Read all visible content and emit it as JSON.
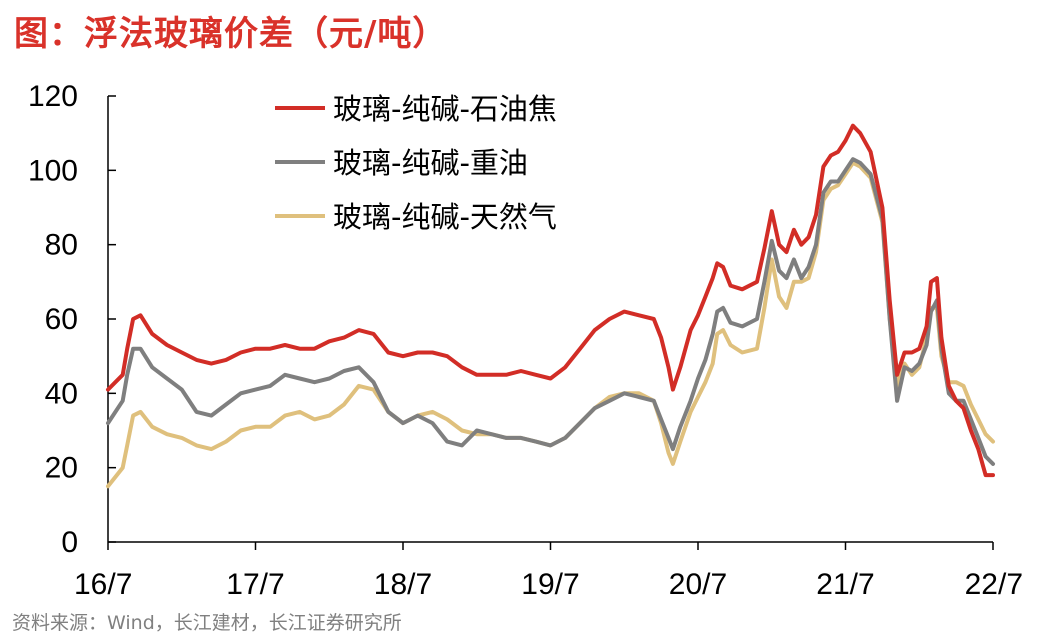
{
  "title": "图：浮法玻璃价差（元/吨）",
  "source": "资料来源：Wind，长江建材，长江证券研究所",
  "chart_data": {
    "type": "line",
    "x_ticks": [
      "16/7",
      "17/7",
      "18/7",
      "19/7",
      "20/7",
      "21/7",
      "22/7"
    ],
    "x_range": [
      2016.5,
      2022.5
    ],
    "ylim": [
      0,
      120
    ],
    "y_ticks": [
      0,
      20,
      40,
      60,
      80,
      100,
      120
    ],
    "legend_position": "top-left",
    "grid": false,
    "series": [
      {
        "name": "玻璃-纯碱-石油焦",
        "color": "#d22d26",
        "points": [
          [
            2016.5,
            41
          ],
          [
            2016.6,
            45
          ],
          [
            2016.63,
            52
          ],
          [
            2016.67,
            60
          ],
          [
            2016.72,
            61
          ],
          [
            2016.8,
            56
          ],
          [
            2016.9,
            53
          ],
          [
            2017.0,
            51
          ],
          [
            2017.1,
            49
          ],
          [
            2017.2,
            48
          ],
          [
            2017.3,
            49
          ],
          [
            2017.4,
            51
          ],
          [
            2017.5,
            52
          ],
          [
            2017.6,
            52
          ],
          [
            2017.7,
            53
          ],
          [
            2017.8,
            52
          ],
          [
            2017.9,
            52
          ],
          [
            2018.0,
            54
          ],
          [
            2018.1,
            55
          ],
          [
            2018.2,
            57
          ],
          [
            2018.3,
            56
          ],
          [
            2018.4,
            51
          ],
          [
            2018.5,
            50
          ],
          [
            2018.6,
            51
          ],
          [
            2018.7,
            51
          ],
          [
            2018.8,
            50
          ],
          [
            2018.9,
            47
          ],
          [
            2019.0,
            45
          ],
          [
            2019.1,
            45
          ],
          [
            2019.2,
            45
          ],
          [
            2019.3,
            46
          ],
          [
            2019.4,
            45
          ],
          [
            2019.5,
            44
          ],
          [
            2019.6,
            47
          ],
          [
            2019.7,
            52
          ],
          [
            2019.8,
            57
          ],
          [
            2019.9,
            60
          ],
          [
            2020.0,
            62
          ],
          [
            2020.1,
            61
          ],
          [
            2020.2,
            60
          ],
          [
            2020.25,
            55
          ],
          [
            2020.3,
            47
          ],
          [
            2020.33,
            41
          ],
          [
            2020.38,
            47
          ],
          [
            2020.45,
            57
          ],
          [
            2020.5,
            61
          ],
          [
            2020.55,
            66
          ],
          [
            2020.6,
            71
          ],
          [
            2020.63,
            75
          ],
          [
            2020.67,
            74
          ],
          [
            2020.72,
            69
          ],
          [
            2020.8,
            68
          ],
          [
            2020.9,
            70
          ],
          [
            2020.95,
            79
          ],
          [
            2021.0,
            89
          ],
          [
            2021.05,
            80
          ],
          [
            2021.1,
            78
          ],
          [
            2021.15,
            84
          ],
          [
            2021.2,
            80
          ],
          [
            2021.25,
            82
          ],
          [
            2021.3,
            88
          ],
          [
            2021.35,
            101
          ],
          [
            2021.4,
            104
          ],
          [
            2021.45,
            105
          ],
          [
            2021.5,
            108
          ],
          [
            2021.55,
            112
          ],
          [
            2021.6,
            110
          ],
          [
            2021.67,
            105
          ],
          [
            2021.75,
            90
          ],
          [
            2021.8,
            65
          ],
          [
            2021.85,
            45
          ],
          [
            2021.9,
            51
          ],
          [
            2021.95,
            51
          ],
          [
            2022.0,
            52
          ],
          [
            2022.05,
            58
          ],
          [
            2022.08,
            70
          ],
          [
            2022.12,
            71
          ],
          [
            2022.15,
            55
          ],
          [
            2022.2,
            42
          ],
          [
            2022.25,
            38
          ],
          [
            2022.3,
            36
          ],
          [
            2022.35,
            30
          ],
          [
            2022.4,
            25
          ],
          [
            2022.45,
            18
          ],
          [
            2022.5,
            18
          ]
        ]
      },
      {
        "name": "玻璃-纯碱-重油",
        "color": "#7f7f7f",
        "points": [
          [
            2016.5,
            32
          ],
          [
            2016.6,
            38
          ],
          [
            2016.63,
            45
          ],
          [
            2016.67,
            52
          ],
          [
            2016.72,
            52
          ],
          [
            2016.8,
            47
          ],
          [
            2016.9,
            44
          ],
          [
            2017.0,
            41
          ],
          [
            2017.1,
            35
          ],
          [
            2017.2,
            34
          ],
          [
            2017.3,
            37
          ],
          [
            2017.4,
            40
          ],
          [
            2017.5,
            41
          ],
          [
            2017.6,
            42
          ],
          [
            2017.7,
            45
          ],
          [
            2017.8,
            44
          ],
          [
            2017.9,
            43
          ],
          [
            2018.0,
            44
          ],
          [
            2018.1,
            46
          ],
          [
            2018.2,
            47
          ],
          [
            2018.3,
            43
          ],
          [
            2018.4,
            35
          ],
          [
            2018.5,
            32
          ],
          [
            2018.6,
            34
          ],
          [
            2018.7,
            32
          ],
          [
            2018.8,
            27
          ],
          [
            2018.9,
            26
          ],
          [
            2019.0,
            30
          ],
          [
            2019.1,
            29
          ],
          [
            2019.2,
            28
          ],
          [
            2019.3,
            28
          ],
          [
            2019.4,
            27
          ],
          [
            2019.5,
            26
          ],
          [
            2019.6,
            28
          ],
          [
            2019.7,
            32
          ],
          [
            2019.8,
            36
          ],
          [
            2019.9,
            38
          ],
          [
            2020.0,
            40
          ],
          [
            2020.1,
            39
          ],
          [
            2020.2,
            38
          ],
          [
            2020.25,
            33
          ],
          [
            2020.3,
            28
          ],
          [
            2020.33,
            25
          ],
          [
            2020.38,
            31
          ],
          [
            2020.45,
            38
          ],
          [
            2020.5,
            44
          ],
          [
            2020.55,
            49
          ],
          [
            2020.6,
            56
          ],
          [
            2020.63,
            62
          ],
          [
            2020.67,
            63
          ],
          [
            2020.72,
            59
          ],
          [
            2020.8,
            58
          ],
          [
            2020.9,
            60
          ],
          [
            2020.95,
            70
          ],
          [
            2021.0,
            81
          ],
          [
            2021.05,
            73
          ],
          [
            2021.1,
            71
          ],
          [
            2021.15,
            76
          ],
          [
            2021.2,
            71
          ],
          [
            2021.25,
            74
          ],
          [
            2021.3,
            80
          ],
          [
            2021.35,
            94
          ],
          [
            2021.4,
            97
          ],
          [
            2021.45,
            97
          ],
          [
            2021.5,
            100
          ],
          [
            2021.55,
            103
          ],
          [
            2021.6,
            102
          ],
          [
            2021.67,
            99
          ],
          [
            2021.75,
            87
          ],
          [
            2021.8,
            60
          ],
          [
            2021.85,
            38
          ],
          [
            2021.9,
            47
          ],
          [
            2021.95,
            46
          ],
          [
            2022.0,
            48
          ],
          [
            2022.05,
            53
          ],
          [
            2022.08,
            62
          ],
          [
            2022.12,
            65
          ],
          [
            2022.15,
            52
          ],
          [
            2022.2,
            40
          ],
          [
            2022.25,
            38
          ],
          [
            2022.3,
            38
          ],
          [
            2022.35,
            33
          ],
          [
            2022.4,
            28
          ],
          [
            2022.45,
            23
          ],
          [
            2022.5,
            21
          ]
        ]
      },
      {
        "name": "玻璃-纯碱-天然气",
        "color": "#dfc07d",
        "points": [
          [
            2016.5,
            15
          ],
          [
            2016.6,
            20
          ],
          [
            2016.63,
            26
          ],
          [
            2016.67,
            34
          ],
          [
            2016.72,
            35
          ],
          [
            2016.8,
            31
          ],
          [
            2016.9,
            29
          ],
          [
            2017.0,
            28
          ],
          [
            2017.1,
            26
          ],
          [
            2017.2,
            25
          ],
          [
            2017.3,
            27
          ],
          [
            2017.4,
            30
          ],
          [
            2017.5,
            31
          ],
          [
            2017.6,
            31
          ],
          [
            2017.7,
            34
          ],
          [
            2017.8,
            35
          ],
          [
            2017.9,
            33
          ],
          [
            2018.0,
            34
          ],
          [
            2018.1,
            37
          ],
          [
            2018.2,
            42
          ],
          [
            2018.3,
            41
          ],
          [
            2018.4,
            35
          ],
          [
            2018.5,
            32
          ],
          [
            2018.6,
            34
          ],
          [
            2018.7,
            35
          ],
          [
            2018.8,
            33
          ],
          [
            2018.9,
            30
          ],
          [
            2019.0,
            29
          ],
          [
            2019.1,
            29
          ],
          [
            2019.2,
            28
          ],
          [
            2019.3,
            28
          ],
          [
            2019.4,
            27
          ],
          [
            2019.5,
            26
          ],
          [
            2019.6,
            28
          ],
          [
            2019.7,
            32
          ],
          [
            2019.8,
            36
          ],
          [
            2019.9,
            39
          ],
          [
            2020.0,
            40
          ],
          [
            2020.1,
            40
          ],
          [
            2020.2,
            38
          ],
          [
            2020.25,
            32
          ],
          [
            2020.3,
            24
          ],
          [
            2020.33,
            21
          ],
          [
            2020.38,
            27
          ],
          [
            2020.45,
            35
          ],
          [
            2020.5,
            39
          ],
          [
            2020.55,
            43
          ],
          [
            2020.6,
            48
          ],
          [
            2020.63,
            56
          ],
          [
            2020.67,
            57
          ],
          [
            2020.72,
            53
          ],
          [
            2020.8,
            51
          ],
          [
            2020.9,
            52
          ],
          [
            2020.95,
            63
          ],
          [
            2021.0,
            76
          ],
          [
            2021.05,
            66
          ],
          [
            2021.1,
            63
          ],
          [
            2021.15,
            70
          ],
          [
            2021.2,
            70
          ],
          [
            2021.25,
            71
          ],
          [
            2021.3,
            78
          ],
          [
            2021.35,
            92
          ],
          [
            2021.4,
            95
          ],
          [
            2021.45,
            96
          ],
          [
            2021.5,
            99
          ],
          [
            2021.55,
            102
          ],
          [
            2021.6,
            101
          ],
          [
            2021.67,
            98
          ],
          [
            2021.75,
            86
          ],
          [
            2021.8,
            60
          ],
          [
            2021.85,
            42
          ],
          [
            2021.9,
            48
          ],
          [
            2021.95,
            45
          ],
          [
            2022.0,
            47
          ],
          [
            2022.05,
            55
          ],
          [
            2022.08,
            63
          ],
          [
            2022.12,
            63
          ],
          [
            2022.15,
            50
          ],
          [
            2022.2,
            43
          ],
          [
            2022.25,
            43
          ],
          [
            2022.3,
            42
          ],
          [
            2022.35,
            37
          ],
          [
            2022.4,
            33
          ],
          [
            2022.45,
            29
          ],
          [
            2022.5,
            27
          ]
        ]
      }
    ]
  }
}
